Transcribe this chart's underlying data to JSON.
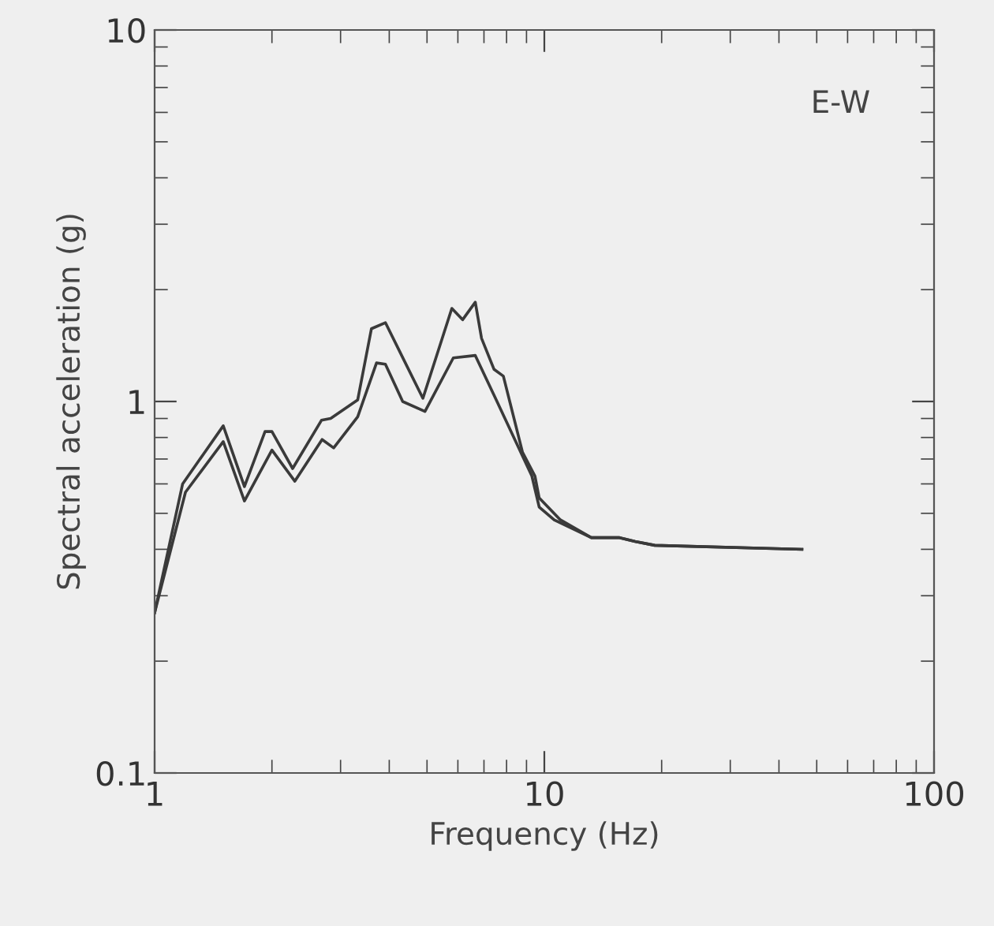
{
  "chart_data": {
    "type": "line",
    "xlabel": "Frequency (Hz)",
    "ylabel": "Spectral acceleration (g)",
    "annotations": [
      "E-W"
    ],
    "log": "xy",
    "xlim": [
      1,
      100
    ],
    "ylim": [
      0.1,
      10
    ],
    "xticks": [
      1,
      10,
      100
    ],
    "yticks": [
      0.1,
      1,
      10
    ],
    "grid": false,
    "legend": false,
    "marker": "none",
    "line_style": "solid",
    "series": [
      {
        "color": "#3a3a3a",
        "x": [
          1,
          1.18,
          1.5,
          1.7,
          1.92,
          2.0,
          2.26,
          2.68,
          2.83,
          3.32,
          3.6,
          3.91,
          4.88,
          5.79,
          6.17,
          6.65,
          6.9,
          7.43,
          7.85,
          8.79,
          9.46,
          9.7,
          11.0,
          13.2,
          15.6,
          17.1,
          19.2,
          45.8
        ],
        "values": [
          0.27,
          0.6,
          0.86,
          0.59,
          0.83,
          0.83,
          0.66,
          0.89,
          0.9,
          1.01,
          1.57,
          1.63,
          1.02,
          1.78,
          1.66,
          1.85,
          1.48,
          1.22,
          1.17,
          0.73,
          0.63,
          0.55,
          0.48,
          0.43,
          0.43,
          0.42,
          0.41,
          0.4
        ]
      },
      {
        "color": "#3a3a3a",
        "x": [
          1,
          1.2,
          1.5,
          1.7,
          2.0,
          2.29,
          2.69,
          2.88,
          3.32,
          3.71,
          3.91,
          4.33,
          4.94,
          5.84,
          6.65,
          7.56,
          9.29,
          9.7,
          10.6,
          13.2,
          15.6,
          17.1,
          19.2,
          45.8
        ],
        "values": [
          0.27,
          0.57,
          0.78,
          0.54,
          0.74,
          0.61,
          0.79,
          0.75,
          0.91,
          1.27,
          1.26,
          1.0,
          0.94,
          1.31,
          1.33,
          1.0,
          0.63,
          0.52,
          0.48,
          0.43,
          0.43,
          0.42,
          0.41,
          0.4
        ]
      }
    ]
  }
}
